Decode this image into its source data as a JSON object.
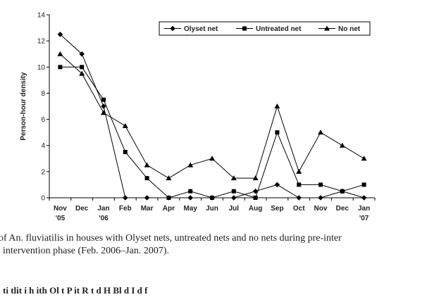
{
  "chart_data": {
    "type": "line",
    "ylabel": "Person-hour density",
    "xlabel": "",
    "title": "",
    "ylim": [
      0,
      14
    ],
    "yticks": [
      0,
      2,
      4,
      6,
      8,
      10,
      12,
      14
    ],
    "grid": false,
    "legend_position": "top-right",
    "categories": [
      {
        "line1": "Nov",
        "line2": "'05"
      },
      {
        "line1": "Dec",
        "line2": ""
      },
      {
        "line1": "Jan",
        "line2": "'06"
      },
      {
        "line1": "Feb",
        "line2": ""
      },
      {
        "line1": "Mar",
        "line2": ""
      },
      {
        "line1": "Apr",
        "line2": ""
      },
      {
        "line1": "May",
        "line2": ""
      },
      {
        "line1": "Jun",
        "line2": ""
      },
      {
        "line1": "Jul",
        "line2": ""
      },
      {
        "line1": "Aug",
        "line2": ""
      },
      {
        "line1": "Sep",
        "line2": ""
      },
      {
        "line1": "Oct",
        "line2": ""
      },
      {
        "line1": "Nov",
        "line2": ""
      },
      {
        "line1": "Dec",
        "line2": ""
      },
      {
        "line1": "Jan",
        "line2": "'07"
      }
    ],
    "series": [
      {
        "name": "Olyset net",
        "marker": "diamond",
        "color": "#000000",
        "values": [
          12.5,
          11,
          7,
          0,
          0,
          0,
          0,
          0,
          0,
          0.5,
          1,
          0,
          0,
          0.5,
          0
        ]
      },
      {
        "name": "Untreated net",
        "marker": "square",
        "color": "#000000",
        "values": [
          10,
          10,
          7.5,
          3.5,
          1.5,
          0,
          0.5,
          0,
          0.5,
          0,
          5,
          1,
          1,
          0.5,
          1
        ]
      },
      {
        "name": "No net",
        "marker": "triangle",
        "color": "#000000",
        "values": [
          11,
          9.5,
          6.5,
          5.5,
          2.5,
          1.5,
          2.5,
          3,
          1.5,
          1.5,
          7,
          2,
          5,
          4,
          3
        ]
      }
    ]
  },
  "caption": {
    "line1": "of An. fluviatilis in houses with Olyset nets, untreated nets and no nets during pre-inter",
    "line2": "intervention phase (Feb. 2006–Jan. 2007).",
    "line3": "ti                      tlit     i h                 ith Ol         t                  P      it   R t          d H          Bl   d I  d      f"
  }
}
